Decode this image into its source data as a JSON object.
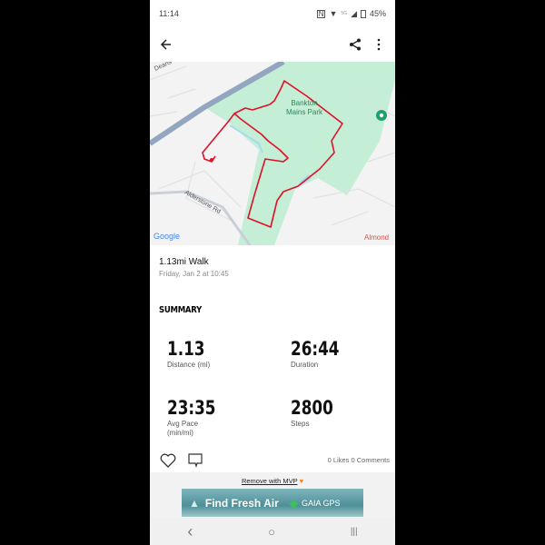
{
  "status_bar": {
    "time": "11:14",
    "battery": "45%",
    "network": "5G"
  },
  "app_bar": {
    "back_icon": "arrow-left-icon",
    "share_icon": "share-icon",
    "more_icon": "more-vertical-icon"
  },
  "map": {
    "labels": {
      "park": [
        "Bankton",
        "Mains Park"
      ],
      "road1": "Alderstone Rd",
      "road2": "Deans",
      "area": "Almond",
      "logo": "Google"
    },
    "colors": {
      "route": "#e0102a",
      "park": "#c4eed5",
      "road": "#93a6bf",
      "water": "#a3dcef"
    }
  },
  "activity": {
    "title": "1.13mi Walk",
    "datetime": "Friday, Jan 2 at 10:45"
  },
  "summary": {
    "heading": "SUMMARY",
    "stats": [
      {
        "value": "1.13",
        "label": "Distance (mi)"
      },
      {
        "value": "26:44",
        "label": "Duration"
      },
      {
        "value": "23:35",
        "label": "Avg Pace (min/mi)"
      },
      {
        "value": "2800",
        "label": "Steps"
      }
    ]
  },
  "social": {
    "counts": "0 Likes 0 Comments"
  },
  "ad": {
    "remove_label": "Remove with MVP",
    "banner_text": "Find Fresh Air",
    "brand": "GAIA GPS"
  },
  "nav_bar": {
    "back": "‹",
    "home": "○",
    "recents": "|||"
  }
}
